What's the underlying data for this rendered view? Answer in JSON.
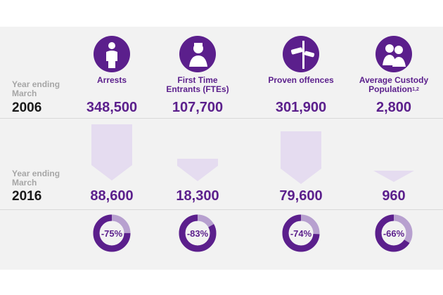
{
  "rows": {
    "period_label": "Year ending March",
    "year_2006": "2006",
    "year_2016": "2016"
  },
  "columns": [
    {
      "heading": "Arrests",
      "sup": "",
      "icon": "person-silhouette-icon",
      "value_2006": "348,500",
      "value_2016": "88,600",
      "change": "-75%"
    },
    {
      "heading": "First Time Entrants (FTEs)",
      "sup": "",
      "icon": "young-person-icon",
      "value_2006": "107,700",
      "value_2016": "18,300",
      "change": "-83%"
    },
    {
      "heading": "Proven offences",
      "sup": "",
      "icon": "cctv-camera-icon",
      "value_2006": "301,900",
      "value_2016": "79,600",
      "change": "-74%"
    },
    {
      "heading": "Average Custody Population",
      "sup": "1,2",
      "icon": "two-people-icon",
      "value_2006": "2,800",
      "value_2016": "960",
      "change": "-66%"
    }
  ],
  "chart_data": {
    "type": "bar",
    "categories": [
      "Arrests",
      "First Time Entrants (FTEs)",
      "Proven offences",
      "Average Custody Population"
    ],
    "series": [
      {
        "name": "2006",
        "values": [
          348500,
          107700,
          301900,
          2800
        ]
      },
      {
        "name": "2016",
        "values": [
          88600,
          18300,
          79600,
          960
        ]
      }
    ],
    "percent_change": [
      -75,
      -83,
      -74,
      -66
    ]
  },
  "colors": {
    "accent": "#5b1f8c",
    "arrow": "#e5dcf0",
    "donut_remaining": "#b7a0cf",
    "period_text": "#a6a6a6"
  }
}
